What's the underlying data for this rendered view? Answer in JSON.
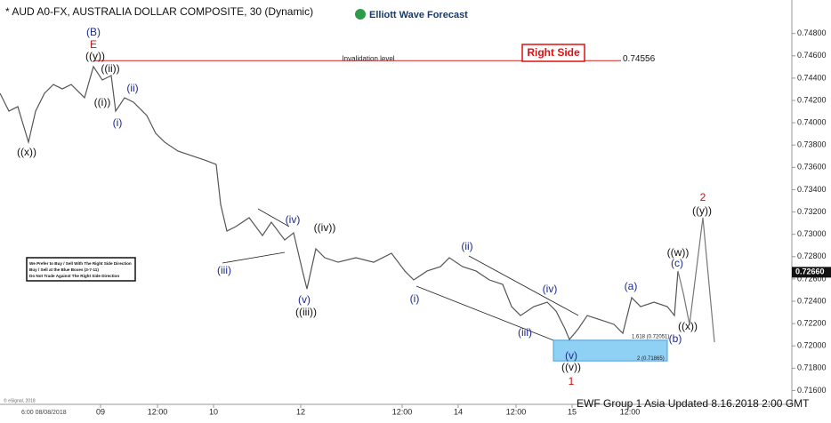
{
  "chart_data": {
    "type": "line",
    "title": "* AUD A0-FX, AUSTRALIA DOLLAR COMPOSITE, 30 (Dynamic)",
    "brand": "Elliott Wave Forecast",
    "footer": "EWF Group 1 Asia Updated 8.16.2018 2:00 GMT",
    "copyright": "© eSignal, 2018",
    "start_label": "6:00 08/08/2018",
    "xlim": [
      0,
      890
    ],
    "ylim": [
      0.715,
      0.751
    ],
    "yticks": [
      {
        "value": 0.748,
        "label": "0.74800"
      },
      {
        "value": 0.746,
        "label": "0.74600"
      },
      {
        "value": 0.744,
        "label": "0.74400"
      },
      {
        "value": 0.742,
        "label": "0.74200"
      },
      {
        "value": 0.74,
        "label": "0.74000"
      },
      {
        "value": 0.738,
        "label": "0.73800"
      },
      {
        "value": 0.736,
        "label": "0.73600"
      },
      {
        "value": 0.734,
        "label": "0.73400"
      },
      {
        "value": 0.732,
        "label": "0.73200"
      },
      {
        "value": 0.73,
        "label": "0.73000"
      },
      {
        "value": 0.728,
        "label": "0.72800"
      },
      {
        "value": 0.726,
        "label": "0.72600"
      },
      {
        "value": 0.724,
        "label": "0.72400"
      },
      {
        "value": 0.722,
        "label": "0.72200"
      },
      {
        "value": 0.72,
        "label": "0.72000"
      },
      {
        "value": 0.718,
        "label": "0.71800"
      },
      {
        "value": 0.716,
        "label": "0.71600"
      }
    ],
    "xticks": [
      {
        "value": 113,
        "label": "09"
      },
      {
        "value": 177,
        "label": "12:00"
      },
      {
        "value": 240,
        "label": "10"
      },
      {
        "value": 338,
        "label": "12"
      },
      {
        "value": 452,
        "label": "12:00"
      },
      {
        "value": 515,
        "label": "14"
      },
      {
        "value": 580,
        "label": "12:00"
      },
      {
        "value": 643,
        "label": "15"
      },
      {
        "value": 708,
        "label": "12:00"
      }
    ],
    "series": [
      {
        "color": "#555555",
        "x": [
          0,
          10,
          20,
          32,
          40,
          50,
          60,
          70,
          80,
          95,
          105,
          115,
          125,
          130,
          140,
          150,
          165,
          175,
          185,
          200,
          215,
          230,
          243,
          248,
          255,
          265,
          280,
          295,
          305,
          320,
          330,
          340,
          345,
          355,
          365,
          380,
          400,
          420,
          440,
          455,
          465,
          480,
          495,
          505,
          520,
          535,
          550,
          565,
          575,
          585,
          600,
          615,
          625,
          635,
          640,
          650,
          660,
          675,
          690,
          700,
          710,
          720,
          735,
          750,
          758,
          762
        ],
        "values": [
          0.74264,
          0.74104,
          0.74144,
          0.73826,
          0.74104,
          0.74264,
          0.74343,
          0.74303,
          0.74343,
          0.74224,
          0.74503,
          0.74383,
          0.74423,
          0.74104,
          0.74224,
          0.74184,
          0.74065,
          0.73905,
          0.73826,
          0.73746,
          0.73706,
          0.73666,
          0.73626,
          0.73268,
          0.73029,
          0.73069,
          0.73149,
          0.72989,
          0.73109,
          0.72949,
          0.73013,
          0.72671,
          0.72511,
          0.7287,
          0.7279,
          0.7275,
          0.7279,
          0.7275,
          0.7283,
          0.72671,
          0.72591,
          0.72671,
          0.7271,
          0.7279,
          0.7271,
          0.72671,
          0.72591,
          0.72551,
          0.72352,
          0.72272,
          0.72352,
          0.72392,
          0.72312,
          0.72153,
          0.72057,
          0.72153,
          0.72272,
          0.72233,
          0.72193,
          0.72113,
          0.72432,
          0.72352,
          0.72392,
          0.72352,
          0.72272,
          0.72671
        ]
      },
      {
        "color": "#777777",
        "x": [
          762,
          768,
          775,
          790,
          803
        ],
        "values": [
          0.72671,
          0.72472,
          0.72193,
          0.73149,
          0.72033
        ]
      }
    ],
    "invalidation": {
      "label": "Invalidation level",
      "value": 0.74556,
      "value_label": "0.74556",
      "color": "#cc2222"
    },
    "right_side": {
      "label": "Right Side",
      "color": "#dd1111"
    },
    "current_price": {
      "value": 0.7266,
      "label": "0.72660"
    },
    "blue_box": {
      "low": 0.71865,
      "high": 0.72051,
      "low_label": "2 (0.71865)",
      "high_label": "1.618 (0.72051)",
      "color": "#8fd0f5"
    },
    "notice": [
      "We Prefer to Buy / Sell With The Right Side Direction",
      "Buy / Sell at the Blue Boxes (3-7-11)",
      "Do Not Trade Against The Right Side Direction"
    ],
    "annotations": [
      {
        "text": "(B)",
        "color": "#1a2a8c"
      },
      {
        "text": "E",
        "color": "#cc1111"
      },
      {
        "text": "((y))",
        "color": "#111111"
      },
      {
        "text": "((ii))",
        "color": "#111111"
      },
      {
        "text": "((i))",
        "color": "#111111"
      },
      {
        "text": "(i)",
        "color": "#1a2a8c"
      },
      {
        "text": "(ii)",
        "color": "#1a2a8c"
      },
      {
        "text": "((x))",
        "color": "#111111"
      },
      {
        "text": "(iii)",
        "color": "#1a2a8c"
      },
      {
        "text": "(iv)",
        "color": "#1a2a8c"
      },
      {
        "text": "((iv))",
        "color": "#111111"
      },
      {
        "text": "(v)",
        "color": "#1a2a8c"
      },
      {
        "text": "((iii))",
        "color": "#111111"
      },
      {
        "text": "(i)",
        "color": "#1a2a8c"
      },
      {
        "text": "(ii)",
        "color": "#1a2a8c"
      },
      {
        "text": "(iii)",
        "color": "#1a2a8c"
      },
      {
        "text": "(iv)",
        "color": "#1a2a8c"
      },
      {
        "text": "(v)",
        "color": "#1a2a8c"
      },
      {
        "text": "((v))",
        "color": "#111111"
      },
      {
        "text": "1",
        "color": "#cc1111"
      },
      {
        "text": "(a)",
        "color": "#1a2a8c"
      },
      {
        "text": "((w))",
        "color": "#111111"
      },
      {
        "text": "(c)",
        "color": "#1a2a8c"
      },
      {
        "text": "(b)",
        "color": "#1a2a8c"
      },
      {
        "text": "((x))",
        "color": "#111111"
      },
      {
        "text": "2",
        "color": "#cc1111"
      },
      {
        "text": "((y))",
        "color": "#111111"
      }
    ]
  }
}
